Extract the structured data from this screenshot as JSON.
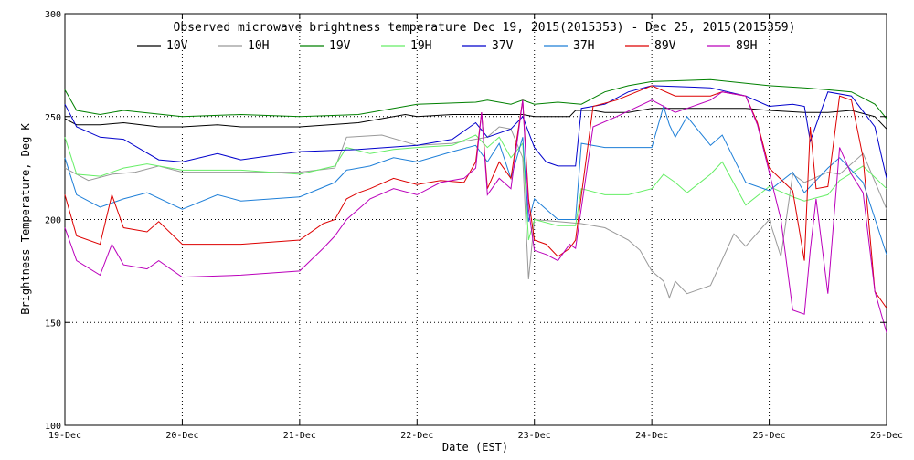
{
  "chart_data": {
    "type": "line",
    "title": "Observed microwave brightness temperature Dec 19, 2015(2015353) - Dec 25, 2015(2015359)",
    "xlabel": "Date (EST)",
    "ylabel": "Brightness Temperature, Deg K",
    "x_range": [
      0,
      7
    ],
    "xlim": [
      "19-Dec",
      "26-Dec"
    ],
    "ylim": [
      100,
      300
    ],
    "x_ticks": [
      {
        "at": 0,
        "label": "19-Dec"
      },
      {
        "at": 1,
        "label": "20-Dec"
      },
      {
        "at": 2,
        "label": "21-Dec"
      },
      {
        "at": 3,
        "label": "22-Dec"
      },
      {
        "at": 4,
        "label": "23-Dec"
      },
      {
        "at": 5,
        "label": "24-Dec"
      },
      {
        "at": 6,
        "label": "25-Dec"
      },
      {
        "at": 7,
        "label": "26-Dec"
      }
    ],
    "y_ticks": [
      100,
      150,
      200,
      250,
      300
    ],
    "grid": "dotted at 20-Dec to 25-Dec and at 150, 200, 250",
    "legend_placement": "top (two rows under title)",
    "series": [
      {
        "name": "10V",
        "color": "#000000",
        "x": [
          0,
          0.1,
          0.3,
          0.5,
          0.8,
          1,
          1.3,
          1.5,
          2,
          2.5,
          2.9,
          3,
          3.3,
          3.6,
          3.9,
          4,
          4.2,
          4.3,
          4.35,
          4.5,
          4.6,
          4.8,
          5,
          5.2,
          5.5,
          5.8,
          6,
          6.3,
          6.5,
          6.7,
          6.9,
          7
        ],
        "y": [
          249,
          246,
          246,
          247,
          245,
          245,
          246,
          245,
          245,
          247,
          251,
          250,
          251,
          251,
          251,
          250,
          250,
          250,
          253,
          253,
          252,
          252,
          254,
          254,
          254,
          254,
          253,
          252,
          252,
          253,
          250,
          244
        ]
      },
      {
        "name": "10H",
        "color": "#999999",
        "x": [
          0,
          0.1,
          0.2,
          0.4,
          0.6,
          0.8,
          1,
          1.5,
          2,
          2.3,
          2.4,
          2.7,
          3,
          3.3,
          3.6,
          3.7,
          3.8,
          3.9,
          3.95,
          4,
          4.2,
          4.4,
          4.6,
          4.8,
          4.9,
          5,
          5.1,
          5.15,
          5.2,
          5.3,
          5.5,
          5.7,
          5.8,
          6,
          6.1,
          6.2,
          6.3,
          6.5,
          6.6,
          6.8,
          7
        ],
        "y": [
          225,
          222,
          219,
          222,
          223,
          226,
          223,
          223,
          223,
          225,
          240,
          241,
          236,
          237,
          240,
          245,
          244,
          230,
          171,
          200,
          199,
          198,
          196,
          190,
          185,
          175,
          170,
          162,
          170,
          164,
          168,
          193,
          187,
          200,
          182,
          222,
          218,
          223,
          222,
          232,
          205
        ]
      },
      {
        "name": "19V",
        "color": "#008000",
        "x": [
          0,
          0.1,
          0.3,
          0.5,
          1,
          1.5,
          2,
          2.5,
          3,
          3.5,
          3.6,
          3.8,
          3.9,
          4,
          4.2,
          4.4,
          4.6,
          4.8,
          5,
          5.5,
          6,
          6.3,
          6.5,
          6.7,
          6.9,
          7
        ],
        "y": [
          263,
          253,
          251,
          253,
          250,
          251,
          250,
          251,
          256,
          257,
          258,
          256,
          258,
          256,
          257,
          256,
          262,
          265,
          267,
          268,
          265,
          264,
          263,
          262,
          256,
          249
        ]
      },
      {
        "name": "19H",
        "color": "#66ee66",
        "x": [
          0,
          0.1,
          0.3,
          0.5,
          0.7,
          1,
          1.5,
          2,
          2.3,
          2.4,
          2.6,
          2.8,
          3,
          3.3,
          3.5,
          3.6,
          3.7,
          3.8,
          3.9,
          3.95,
          4,
          4.2,
          4.35,
          4.4,
          4.6,
          4.8,
          5,
          5.1,
          5.2,
          5.3,
          5.5,
          5.6,
          5.8,
          6,
          6.2,
          6.3,
          6.5,
          6.6,
          6.8,
          7
        ],
        "y": [
          240,
          222,
          221,
          225,
          227,
          224,
          224,
          222,
          226,
          235,
          232,
          234,
          235,
          236,
          241,
          235,
          240,
          230,
          237,
          190,
          200,
          197,
          197,
          215,
          212,
          212,
          215,
          222,
          218,
          213,
          222,
          228,
          207,
          216,
          211,
          209,
          212,
          219,
          226,
          215
        ]
      },
      {
        "name": "37V",
        "color": "#0000cc",
        "x": [
          0,
          0.1,
          0.3,
          0.5,
          0.8,
          1,
          1.3,
          1.5,
          2,
          2.5,
          3,
          3.3,
          3.5,
          3.6,
          3.8,
          3.9,
          4,
          4.1,
          4.2,
          4.35,
          4.4,
          4.6,
          4.8,
          5,
          5.5,
          5.8,
          6,
          6.2,
          6.3,
          6.35,
          6.5,
          6.7,
          6.9,
          7
        ],
        "y": [
          256,
          245,
          240,
          239,
          229,
          228,
          232,
          229,
          233,
          234,
          236,
          239,
          247,
          240,
          244,
          250,
          235,
          228,
          226,
          226,
          254,
          256,
          262,
          265,
          264,
          260,
          255,
          256,
          255,
          238,
          262,
          260,
          245,
          220
        ]
      },
      {
        "name": "37H",
        "color": "#1e7fd8",
        "x": [
          0,
          0.1,
          0.3,
          0.5,
          0.7,
          1,
          1.3,
          1.5,
          2,
          2.3,
          2.4,
          2.6,
          2.8,
          3,
          3.3,
          3.5,
          3.6,
          3.7,
          3.8,
          3.9,
          3.95,
          4,
          4.2,
          4.35,
          4.4,
          4.6,
          4.8,
          5,
          5.1,
          5.15,
          5.2,
          5.3,
          5.5,
          5.6,
          5.8,
          6,
          6.2,
          6.3,
          6.5,
          6.6,
          6.8,
          7
        ],
        "y": [
          230,
          212,
          206,
          210,
          213,
          205,
          212,
          209,
          211,
          218,
          224,
          226,
          230,
          228,
          233,
          236,
          228,
          237,
          220,
          240,
          199,
          210,
          200,
          200,
          237,
          235,
          235,
          235,
          255,
          246,
          240,
          250,
          236,
          241,
          218,
          214,
          223,
          213,
          225,
          230,
          218,
          183
        ]
      },
      {
        "name": "89V",
        "color": "#dd0000",
        "x": [
          0,
          0.1,
          0.3,
          0.4,
          0.5,
          0.7,
          0.8,
          1,
          1.5,
          2,
          2.2,
          2.3,
          2.4,
          2.5,
          2.6,
          2.8,
          3,
          3.2,
          3.4,
          3.5,
          3.55,
          3.6,
          3.7,
          3.8,
          3.9,
          3.95,
          4,
          4.1,
          4.2,
          4.3,
          4.35,
          4.5,
          4.7,
          5,
          5.2,
          5.5,
          5.6,
          5.8,
          5.9,
          6,
          6.2,
          6.3,
          6.35,
          6.4,
          6.5,
          6.6,
          6.65,
          6.7,
          6.8,
          6.9,
          7
        ],
        "y": [
          212,
          192,
          188,
          212,
          196,
          194,
          199,
          188,
          188,
          190,
          198,
          200,
          210,
          213,
          215,
          220,
          217,
          219,
          218,
          228,
          252,
          215,
          228,
          220,
          258,
          210,
          190,
          188,
          182,
          186,
          190,
          255,
          258,
          265,
          260,
          260,
          262,
          260,
          247,
          225,
          214,
          180,
          245,
          215,
          216,
          260,
          259,
          258,
          230,
          165,
          157
        ]
      },
      {
        "name": "89H",
        "color": "#bb00bb",
        "x": [
          0,
          0.1,
          0.3,
          0.4,
          0.5,
          0.7,
          0.8,
          1,
          1.5,
          2,
          2.2,
          2.3,
          2.4,
          2.5,
          2.6,
          2.8,
          3,
          3.2,
          3.4,
          3.5,
          3.55,
          3.6,
          3.7,
          3.8,
          3.9,
          3.95,
          4,
          4.1,
          4.2,
          4.3,
          4.35,
          4.5,
          4.7,
          5,
          5.2,
          5.5,
          5.6,
          5.8,
          5.9,
          6,
          6.1,
          6.2,
          6.3,
          6.35,
          6.4,
          6.5,
          6.6,
          6.7,
          6.8,
          6.9,
          7
        ],
        "y": [
          196,
          180,
          173,
          188,
          178,
          176,
          180,
          172,
          173,
          175,
          186,
          192,
          200,
          205,
          210,
          215,
          212,
          218,
          220,
          225,
          252,
          212,
          220,
          215,
          258,
          205,
          185,
          183,
          180,
          188,
          186,
          245,
          250,
          258,
          252,
          258,
          262,
          260,
          246,
          223,
          200,
          156,
          154,
          185,
          210,
          164,
          235,
          222,
          213,
          165,
          145
        ]
      }
    ]
  }
}
